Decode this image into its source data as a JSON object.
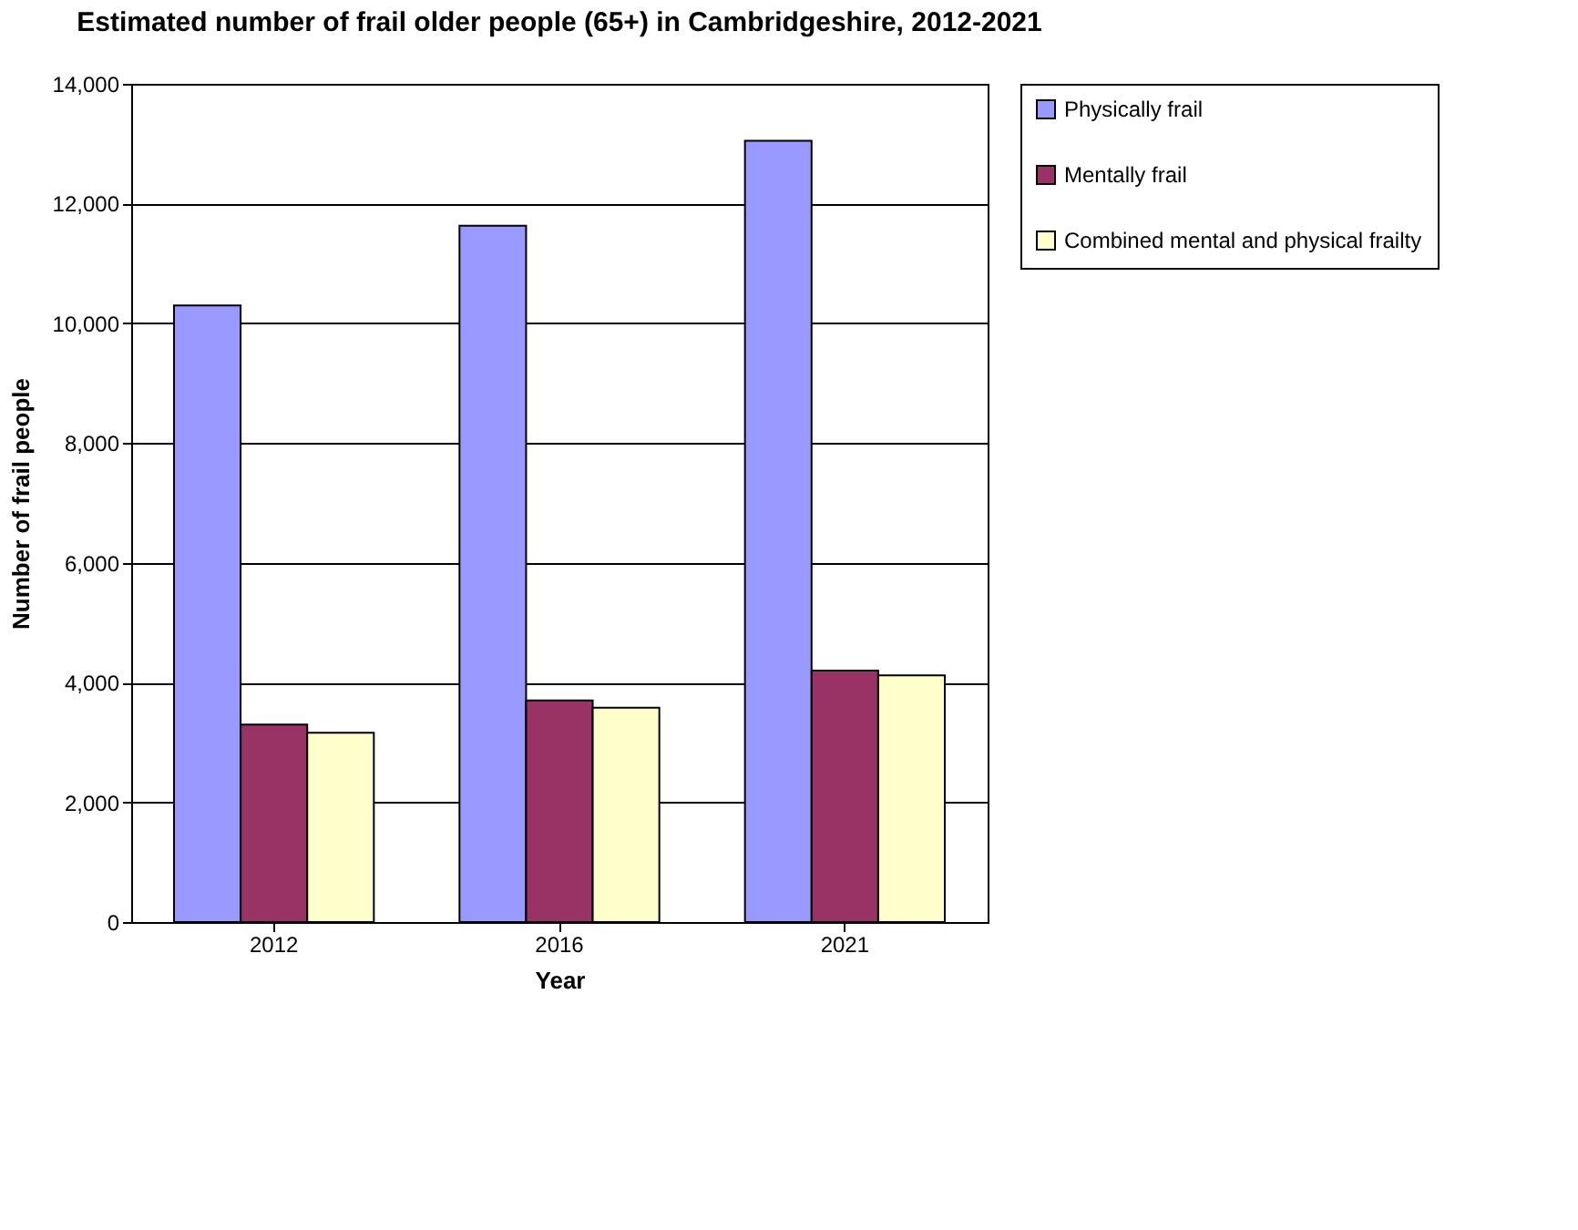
{
  "chart_data": {
    "type": "bar",
    "title": "Estimated number of frail older people (65+) in Cambridgeshire, 2012-2021",
    "xlabel": "Year",
    "ylabel": "Number of frail people",
    "categories": [
      "2012",
      "2016",
      "2021"
    ],
    "series": [
      {
        "name": "Physically frail",
        "color": "#9999ff",
        "values": [
          10300,
          11630,
          13050
        ]
      },
      {
        "name": "Mentally frail",
        "color": "#993366",
        "values": [
          3300,
          3700,
          4200
        ]
      },
      {
        "name": "Combined mental and physical frailty",
        "color": "#ffffcc",
        "values": [
          3160,
          3580,
          4120
        ]
      }
    ],
    "ylim": [
      0,
      14000
    ],
    "yticks": [
      0,
      {
        "value": 2000,
        "label": "2,000"
      },
      {
        "value": 4000,
        "label": "4,000"
      },
      {
        "value": 6000,
        "label": "6,000"
      },
      {
        "value": 8000,
        "label": "8,000"
      },
      {
        "value": 10000,
        "label": "10,000"
      },
      {
        "value": 12000,
        "label": "12,000"
      },
      {
        "value": 14000,
        "label": "14,000"
      }
    ],
    "grid": "y",
    "legend": "right"
  }
}
